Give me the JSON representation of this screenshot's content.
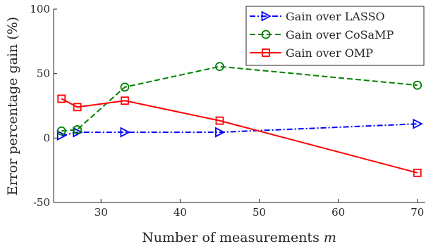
{
  "chart_data": {
    "type": "line",
    "xlabel": "Number of measurements m",
    "ylabel": "Error percentage gain (%)",
    "xlim": [
      24,
      71
    ],
    "ylim": [
      -50,
      100
    ],
    "xticks": [
      30,
      40,
      50,
      60,
      70
    ],
    "yticks": [
      -50,
      0,
      50,
      100
    ],
    "grid": false,
    "legend_position": "top-right",
    "series": [
      {
        "name": "Gain over LASSO",
        "color": "#0000ff",
        "dash": "dash-dot",
        "marker": "triangle-right",
        "x": [
          25,
          27,
          33,
          45,
          70
        ],
        "y": [
          2,
          4.5,
          4.5,
          4.5,
          11
        ]
      },
      {
        "name": "Gain over CoSaMP",
        "color": "#008000",
        "dash": "dashed",
        "marker": "circle",
        "x": [
          25,
          27,
          33,
          45,
          70
        ],
        "y": [
          5.5,
          6.5,
          39.5,
          55.5,
          41
        ]
      },
      {
        "name": "Gain over OMP",
        "color": "#ff0000",
        "dash": "solid",
        "marker": "square",
        "x": [
          25,
          27,
          33,
          45,
          70
        ],
        "y": [
          30.5,
          24,
          29,
          13.5,
          -27
        ]
      }
    ]
  }
}
